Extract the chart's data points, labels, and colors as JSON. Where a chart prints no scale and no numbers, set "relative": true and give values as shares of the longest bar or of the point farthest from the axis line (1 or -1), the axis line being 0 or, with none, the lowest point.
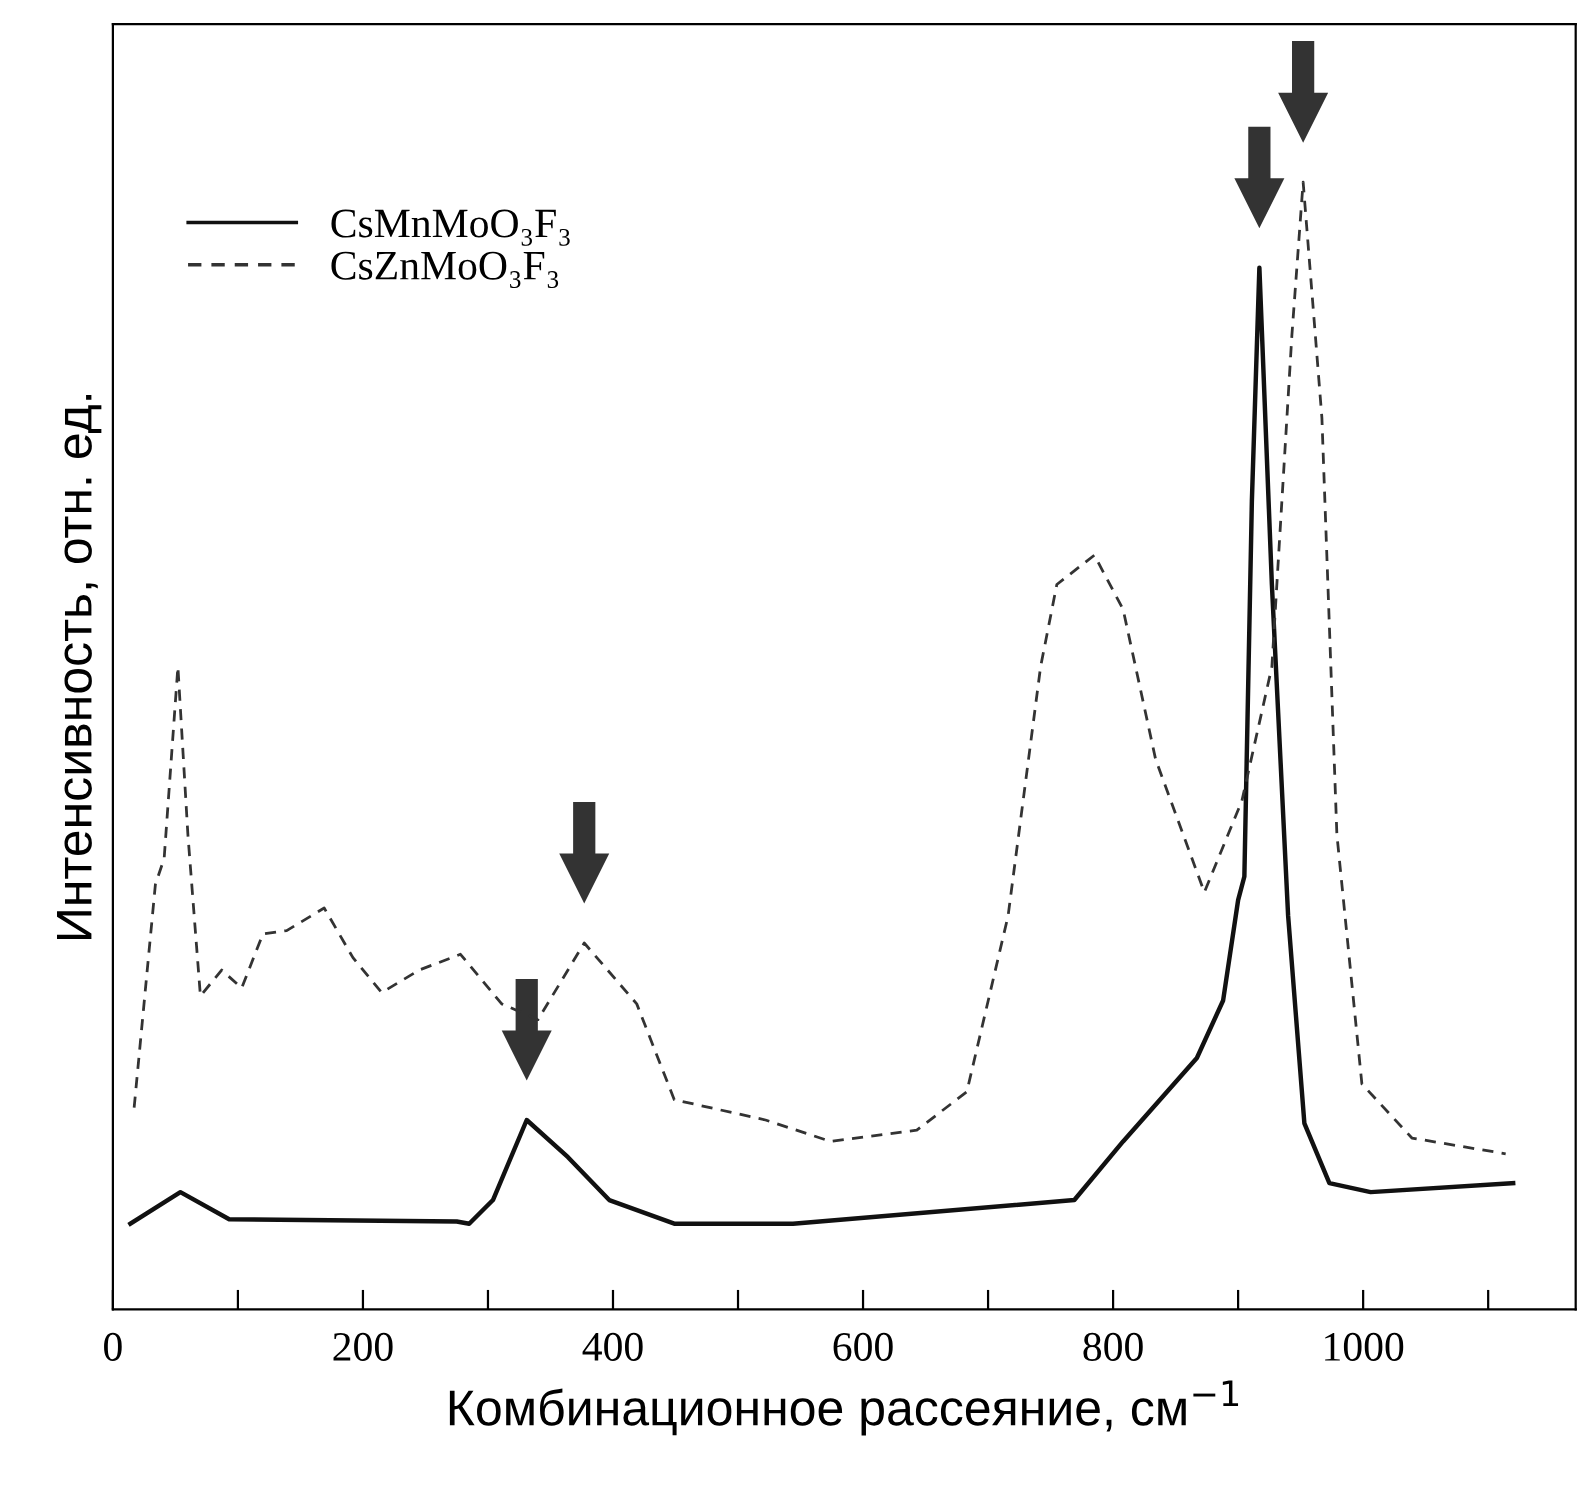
{
  "chart_data": {
    "type": "line",
    "relative": true,
    "xlabel": "Комбинационное рассеяние, см$^{−1}$",
    "ylabel": "Интенсивность, отн. ед.",
    "xlim": [
      0,
      1170
    ],
    "xticks": [
      0,
      {
        "value": 100,
        "label": null
      },
      200,
      {
        "value": 300,
        "label": null
      },
      400,
      {
        "value": 500,
        "label": null
      },
      600,
      {
        "value": 700,
        "label": null
      },
      800,
      {
        "value": 900,
        "label": null
      },
      1000,
      {
        "value": 1100,
        "label": null
      }
    ],
    "grid": false,
    "legend": "top left",
    "marker": "none",
    "series": [
      {
        "name": "CsMnMoO₃F₃",
        "color": "#111111",
        "line_style": "solid",
        "x": [
          14,
          54,
          93,
          275,
          285,
          304,
          331,
          364,
          397,
          449,
          544,
          769,
          808,
          867,
          888,
          900,
          905,
          911,
          917,
          927,
          940,
          953,
          973,
          1006,
          1120
        ],
        "values": [
          0.076,
          0.104,
          0.08,
          0.078,
          0.076,
          0.097,
          0.168,
          0.135,
          0.097,
          0.076,
          0.076,
          0.097,
          0.149,
          0.223,
          0.274,
          0.363,
          0.384,
          0.717,
          0.924,
          0.643,
          0.349,
          0.165,
          0.112,
          0.104,
          0.112
        ]
      },
      {
        "name": "CsZnMoO₃F₃",
        "color": "#333333",
        "line_style": "dashed",
        "x": [
          17,
          34,
          41,
          52,
          60,
          70,
          87,
          103,
          120,
          139,
          169,
          192,
          215,
          245,
          278,
          311,
          340,
          377,
          419,
          449,
          522,
          574,
          643,
          683,
          716,
          742,
          755,
          785,
          808,
          834,
          873,
          903,
          927,
          943,
          952,
          967,
          979,
          999,
          1039,
          1114
        ],
        "values": [
          0.179,
          0.377,
          0.4,
          0.57,
          0.421,
          0.278,
          0.301,
          0.285,
          0.333,
          0.336,
          0.356,
          0.312,
          0.281,
          0.301,
          0.315,
          0.271,
          0.257,
          0.325,
          0.271,
          0.186,
          0.168,
          0.149,
          0.159,
          0.193,
          0.349,
          0.57,
          0.643,
          0.669,
          0.621,
          0.488,
          0.37,
          0.451,
          0.57,
          0.864,
          1.0,
          0.791,
          0.421,
          0.2,
          0.152,
          0.138
        ]
      }
    ]
  }
}
